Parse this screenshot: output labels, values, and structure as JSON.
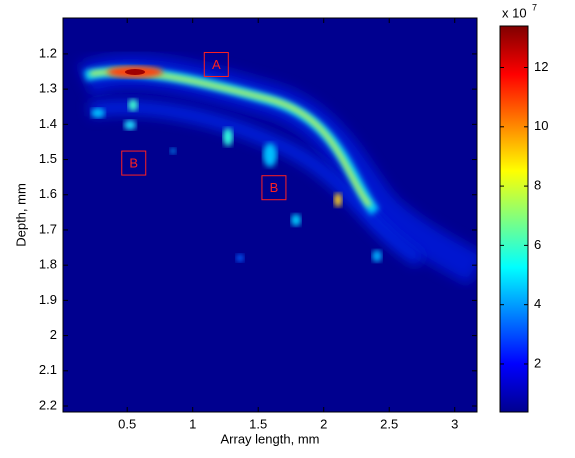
{
  "chart_data": {
    "type": "heatmap",
    "xlabel": "Array length, mm",
    "ylabel": "Depth, mm",
    "xlim": [
      0.01,
      3.17
    ],
    "xticks": [
      0.5,
      1,
      1.5,
      2,
      2.5,
      3
    ],
    "ylim": [
      1.098,
      2.217
    ],
    "yticks": [
      1.2,
      1.3,
      1.4,
      1.5,
      1.6,
      1.7,
      1.8,
      1.9,
      2,
      2.1,
      2.2
    ],
    "clim": [
      0.38,
      13.4
    ],
    "cticks": [
      2,
      4,
      6,
      8,
      10,
      12
    ],
    "colorbar_multiplier": "x 10",
    "colorbar_exponent": "7",
    "annotations": [
      {
        "text": "A",
        "x": 1.18,
        "y": 1.23
      },
      {
        "text": "B",
        "x": 0.55,
        "y": 1.51
      },
      {
        "text": "B",
        "x": 1.62,
        "y": 1.58
      }
    ]
  }
}
